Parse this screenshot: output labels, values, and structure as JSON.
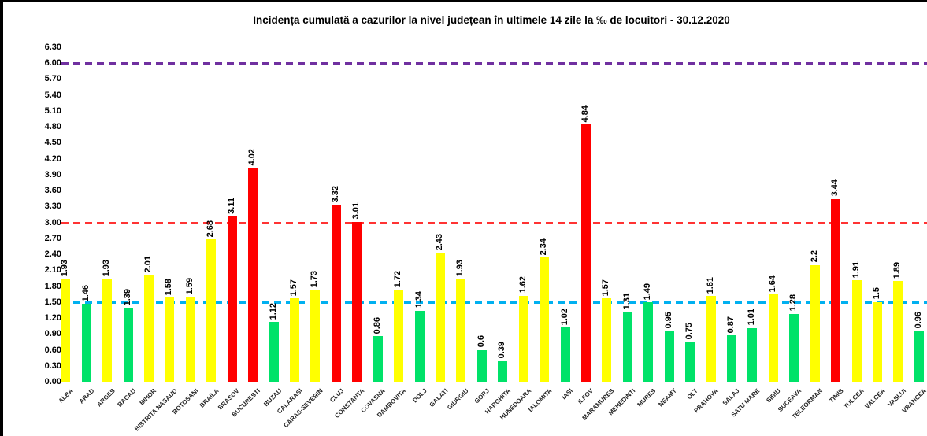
{
  "chart_data": {
    "type": "bar",
    "title": "Incidența cumulată a cazurilor la nivel județean în ultimele 14 zile la ‰ de locuitori - 30.12.2020",
    "xlabel": "",
    "ylabel": "",
    "ylim": [
      0,
      6.3
    ],
    "ytick_step": 0.3,
    "yticks": [
      "0.00",
      "0.30",
      "0.60",
      "0.90",
      "1.20",
      "1.50",
      "1.80",
      "2.10",
      "2.40",
      "2.70",
      "3.00",
      "3.30",
      "3.60",
      "3.90",
      "4.20",
      "4.50",
      "4.80",
      "5.10",
      "5.40",
      "5.70",
      "6.00",
      "6.30"
    ],
    "grid": "none",
    "legend": "none",
    "baseline_color": "#d0cece",
    "palette": {
      "yellow": "#FFFF00",
      "green": "#00E269",
      "red": "#FF0000"
    },
    "reference_lines": [
      {
        "value": 6.0,
        "color": "#7030A0",
        "style": "dashed",
        "name": "threshold-6"
      },
      {
        "value": 3.0,
        "color": "#FF3333",
        "style": "dashed",
        "name": "threshold-3"
      },
      {
        "value": 1.5,
        "color": "#00B0F0",
        "style": "dashed",
        "name": "threshold-1-5"
      }
    ],
    "categories": [
      "ALBA",
      "ARAD",
      "ARGES",
      "BACAU",
      "BIHOR",
      "BISTRITA NASAUD",
      "BOTOSANI",
      "BRAILA",
      "BRASOV",
      "BUCURESTI",
      "BUZAU",
      "CALARASI",
      "CARAS-SEVERIN",
      "CLUJ",
      "CONSTANTA",
      "COVASNA",
      "DAMBOVITA",
      "DOLJ",
      "GALATI",
      "GIURGIU",
      "GORJ",
      "HARGHITA",
      "HUNEDOARA",
      "IALOMITA",
      "IASI",
      "ILFOV",
      "MARAMURES",
      "MEHEDINTI",
      "MURES",
      "NEAMT",
      "OLT",
      "PRAHOVA",
      "SALAJ",
      "SATU MARE",
      "SIBIU",
      "SUCEAVA",
      "TELEORMAN",
      "TIMIS",
      "TULCEA",
      "VALCEA",
      "VASLUI",
      "VRANCEA"
    ],
    "values": [
      "1.93",
      "1.46",
      "1.93",
      "1.39",
      "2.01",
      "1.58",
      "1.59",
      "2.68",
      "3.11",
      "4.02",
      "1.12",
      "1.57",
      "1.73",
      "3.32",
      "3.01",
      "0.86",
      "1.72",
      "1.34",
      "2.43",
      "1.93",
      "0.6",
      "0.39",
      "1.62",
      "2.34",
      "1.02",
      "4.84",
      "1.57",
      "1.31",
      "1.49",
      "0.95",
      "0.75",
      "1.61",
      "0.87",
      "1.01",
      "1.64",
      "1.28",
      "2.2",
      "3.44",
      "1.91",
      "1.5",
      "1.89",
      "0.96"
    ],
    "bar_colors": [
      "yellow",
      "green",
      "yellow",
      "green",
      "yellow",
      "yellow",
      "yellow",
      "yellow",
      "red",
      "red",
      "green",
      "yellow",
      "yellow",
      "red",
      "red",
      "green",
      "yellow",
      "green",
      "yellow",
      "yellow",
      "green",
      "green",
      "yellow",
      "yellow",
      "green",
      "red",
      "yellow",
      "green",
      "green",
      "green",
      "green",
      "yellow",
      "green",
      "green",
      "yellow",
      "green",
      "yellow",
      "red",
      "yellow",
      "yellow",
      "yellow",
      "green"
    ]
  }
}
